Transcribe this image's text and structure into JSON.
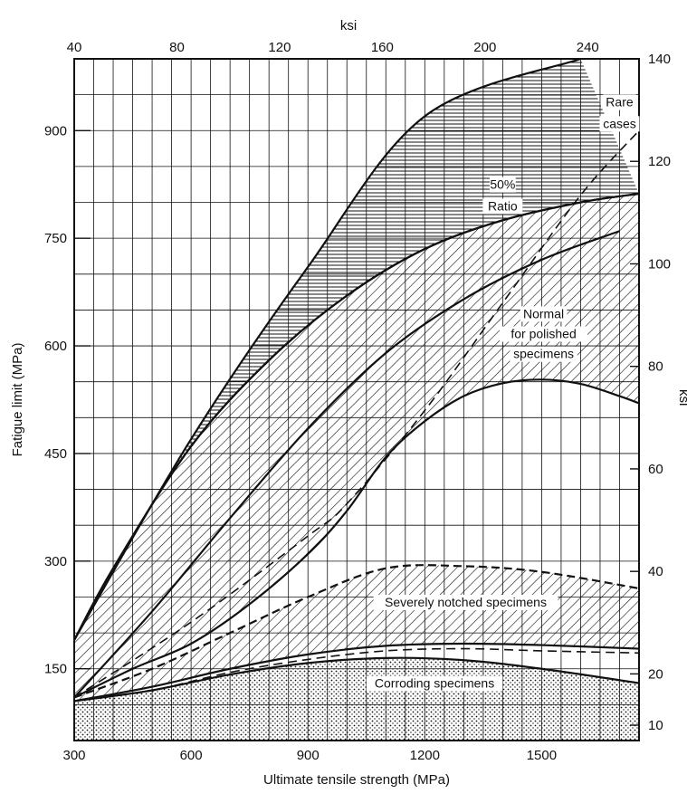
{
  "chart_data": {
    "type": "area",
    "axes": {
      "bottom": {
        "label": "Ultimate tensile strength (MPa)",
        "range": [
          300,
          1750
        ],
        "ticks": [
          300,
          600,
          900,
          1200,
          1500
        ]
      },
      "left": {
        "label": "Fatigue limit (MPa)",
        "range": [
          50,
          1000
        ],
        "ticks": [
          150,
          300,
          450,
          600,
          750,
          900
        ]
      },
      "top": {
        "label": "ksi",
        "range": [
          40,
          260
        ],
        "ticks": [
          40,
          80,
          120,
          160,
          200,
          240
        ]
      },
      "right": {
        "label": "ksi",
        "range": [
          7,
          140
        ],
        "ticks": [
          10,
          20,
          40,
          60,
          80,
          100,
          120,
          140
        ]
      }
    },
    "grid": true,
    "bands": [
      {
        "name": "Rare cases",
        "pattern": "horizontal-hatch",
        "upper": [
          [
            300,
            190
          ],
          [
            600,
            470
          ],
          [
            900,
            710
          ],
          [
            1200,
            920
          ],
          [
            1600,
            1000
          ]
        ],
        "lower": [
          [
            300,
            190
          ],
          [
            400,
            290
          ],
          [
            600,
            460
          ],
          [
            800,
            580
          ],
          [
            1000,
            670
          ],
          [
            1200,
            735
          ],
          [
            1400,
            775
          ],
          [
            1600,
            800
          ],
          [
            1750,
            812
          ]
        ]
      },
      {
        "name": "Normal for polished specimens",
        "pattern": "diagonal-hatch",
        "upper": [
          [
            300,
            190
          ],
          [
            400,
            290
          ],
          [
            600,
            460
          ],
          [
            800,
            580
          ],
          [
            1000,
            670
          ],
          [
            1200,
            735
          ],
          [
            1400,
            775
          ],
          [
            1600,
            800
          ],
          [
            1750,
            812
          ]
        ],
        "lower": [
          [
            300,
            110
          ],
          [
            450,
            150
          ],
          [
            600,
            185
          ],
          [
            750,
            240
          ],
          [
            900,
            310
          ],
          [
            1000,
            370
          ],
          [
            1100,
            445
          ],
          [
            1200,
            495
          ],
          [
            1300,
            530
          ],
          [
            1400,
            548
          ],
          [
            1500,
            553
          ],
          [
            1600,
            547
          ],
          [
            1700,
            530
          ],
          [
            1750,
            520
          ]
        ]
      },
      {
        "name": "Severely notched specimens",
        "pattern": "diagonal-hatch",
        "upper": [
          [
            300,
            110
          ],
          [
            500,
            150
          ],
          [
            700,
            200
          ],
          [
            900,
            250
          ],
          [
            1100,
            290
          ],
          [
            1300,
            293
          ],
          [
            1500,
            285
          ],
          [
            1750,
            262
          ]
        ],
        "lower": [
          [
            300,
            105
          ],
          [
            500,
            125
          ],
          [
            700,
            150
          ],
          [
            900,
            170
          ],
          [
            1100,
            182
          ],
          [
            1300,
            185
          ],
          [
            1500,
            183
          ],
          [
            1750,
            178
          ]
        ]
      },
      {
        "name": "Corroding specimens",
        "pattern": "dots",
        "upper": [
          [
            300,
            105
          ],
          [
            500,
            120
          ],
          [
            700,
            142
          ],
          [
            900,
            158
          ],
          [
            1100,
            165
          ],
          [
            1300,
            162
          ],
          [
            1500,
            150
          ],
          [
            1750,
            130
          ]
        ],
        "lower": [
          [
            300,
            50
          ],
          [
            1750,
            50
          ]
        ]
      }
    ],
    "lines": [
      {
        "name": "50% Ratio",
        "style": "dashed",
        "points": [
          [
            300,
            110
          ],
          [
            600,
            215
          ],
          [
            900,
            335
          ],
          [
            1000,
            380
          ],
          [
            1200,
            510
          ],
          [
            1400,
            660
          ],
          [
            1600,
            810
          ],
          [
            1750,
            900
          ]
        ]
      },
      {
        "name": "polished-centre",
        "style": "solid",
        "points": [
          [
            300,
            110
          ],
          [
            500,
            230
          ],
          [
            700,
            360
          ],
          [
            900,
            485
          ],
          [
            1100,
            590
          ],
          [
            1300,
            665
          ],
          [
            1500,
            720
          ],
          [
            1700,
            760
          ]
        ]
      },
      {
        "name": "notched-dashed-lower",
        "style": "dashed",
        "points": [
          [
            300,
            105
          ],
          [
            500,
            120
          ],
          [
            700,
            145
          ],
          [
            900,
            163
          ],
          [
            1100,
            175
          ],
          [
            1300,
            178
          ],
          [
            1500,
            175
          ],
          [
            1750,
            172
          ]
        ]
      }
    ],
    "annotations": [
      {
        "text": "Rare",
        "x": 1700,
        "y": 935
      },
      {
        "text": "cases",
        "x": 1700,
        "y": 905
      },
      {
        "text": "50%",
        "x": 1400,
        "y": 820
      },
      {
        "text": "Ratio",
        "x": 1400,
        "y": 790
      },
      {
        "text": "Normal",
        "x": 1505,
        "y": 640
      },
      {
        "text": "for polished",
        "x": 1505,
        "y": 612
      },
      {
        "text": "specimens",
        "x": 1505,
        "y": 584
      },
      {
        "text": "Severely notched specimens",
        "x": 1305,
        "y": 238
      },
      {
        "text": "Corroding specimens",
        "x": 1225,
        "y": 125
      }
    ],
    "right_axis_partial_label": "ksi"
  }
}
